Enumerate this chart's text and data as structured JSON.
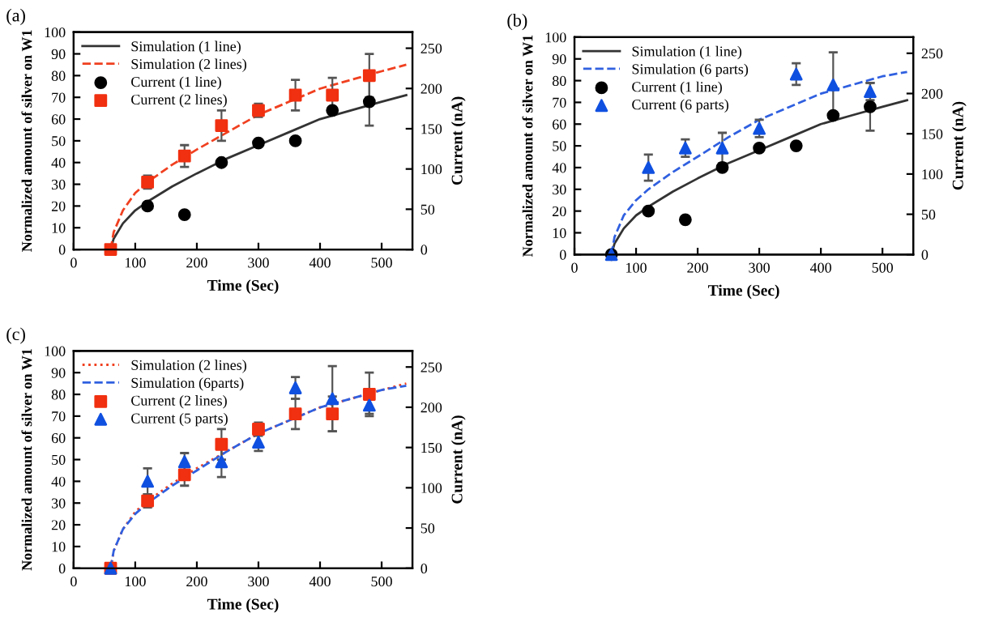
{
  "chart_data": [
    {
      "type": "line",
      "title": "(a)",
      "xlabel": "Time (Sec)",
      "ylabel": "Normalized amount of silver on W1",
      "y2label": "Current (nA)",
      "xlim": [
        0,
        550
      ],
      "xticks": [
        0,
        100,
        200,
        300,
        400,
        500
      ],
      "ylim": [
        0,
        100
      ],
      "yticks": [
        0,
        10,
        20,
        30,
        40,
        50,
        60,
        70,
        80,
        90,
        100
      ],
      "y2lim": [
        0,
        270
      ],
      "y2ticks": [
        0,
        50,
        100,
        150,
        200,
        250
      ],
      "legend": "top left",
      "series": [
        {
          "name": "Simulation (1 line)",
          "type": "line",
          "color": "#333333",
          "line_style": "solid",
          "x": [
            60,
            65,
            80,
            100,
            120,
            160,
            200,
            250,
            300,
            350,
            400,
            450,
            500,
            540
          ],
          "values": [
            0,
            5,
            12,
            18,
            22,
            29,
            35,
            42,
            48,
            54,
            60,
            64,
            68,
            71
          ]
        },
        {
          "name": "Simulation (2 lines)",
          "type": "line",
          "color": "#f04020",
          "line_style": "dashed",
          "x": [
            60,
            65,
            80,
            100,
            120,
            160,
            200,
            250,
            300,
            350,
            400,
            450,
            500,
            540
          ],
          "values": [
            0,
            8,
            18,
            26,
            31,
            39,
            46,
            54,
            62,
            68,
            74,
            78,
            82,
            85
          ]
        },
        {
          "name": "Current (1 line)",
          "type": "scatter",
          "marker": "circle",
          "color": "#000000",
          "x": [
            120,
            180,
            240,
            300,
            360,
            420,
            480
          ],
          "values": [
            20,
            16,
            40,
            49,
            50,
            64,
            68
          ],
          "errors": [
            null,
            null,
            null,
            null,
            null,
            null,
            11
          ]
        },
        {
          "name": "Current (2 lines)",
          "type": "scatter",
          "marker": "square",
          "color": "#f03010",
          "x": [
            60,
            120,
            180,
            240,
            300,
            360,
            420,
            480
          ],
          "values": [
            0,
            31,
            43,
            57,
            64,
            71,
            71,
            80
          ],
          "errors": [
            null,
            3,
            5,
            7,
            3,
            7,
            8,
            10
          ]
        }
      ]
    },
    {
      "type": "line",
      "title": "(b)",
      "xlabel": "Time (Sec)",
      "ylabel": "Normalized amount of silver on W1",
      "y2label": "Current (nA)",
      "xlim": [
        0,
        550
      ],
      "xticks": [
        0,
        100,
        200,
        300,
        400,
        500
      ],
      "ylim": [
        0,
        100
      ],
      "yticks": [
        0,
        10,
        20,
        30,
        40,
        50,
        60,
        70,
        80,
        90,
        100
      ],
      "y2lim": [
        0,
        270
      ],
      "y2ticks": [
        0,
        50,
        100,
        150,
        200,
        250
      ],
      "legend": "top left",
      "series": [
        {
          "name": "Simulation (1 line)",
          "type": "line",
          "color": "#333333",
          "line_style": "solid",
          "x": [
            60,
            65,
            80,
            100,
            120,
            160,
            200,
            250,
            300,
            350,
            400,
            450,
            500,
            540
          ],
          "values": [
            0,
            5,
            12,
            18,
            22,
            29,
            35,
            42,
            48,
            54,
            60,
            64,
            68,
            71
          ]
        },
        {
          "name": "Simulation (6 parts)",
          "type": "line",
          "color": "#3060e0",
          "line_style": "dashed",
          "x": [
            60,
            65,
            80,
            100,
            120,
            160,
            200,
            250,
            300,
            350,
            400,
            450,
            500,
            540
          ],
          "values": [
            0,
            8,
            18,
            25,
            30,
            38,
            45,
            54,
            62,
            68,
            74,
            78,
            82,
            84
          ]
        },
        {
          "name": "Current (1 line)",
          "type": "scatter",
          "marker": "circle",
          "color": "#000000",
          "x": [
            60,
            120,
            180,
            240,
            300,
            360,
            420,
            480
          ],
          "values": [
            0,
            20,
            16,
            40,
            49,
            50,
            64,
            68
          ],
          "errors": [
            null,
            null,
            null,
            null,
            null,
            null,
            null,
            11
          ]
        },
        {
          "name": "Current (6 parts)",
          "type": "scatter",
          "marker": "triangle",
          "color": "#1050e0",
          "x": [
            60,
            120,
            180,
            240,
            300,
            360,
            420,
            480
          ],
          "values": [
            0,
            40,
            49,
            49,
            58,
            83,
            78,
            75
          ],
          "errors": [
            null,
            6,
            4,
            7,
            4,
            5,
            15,
            4
          ]
        }
      ]
    },
    {
      "type": "line",
      "title": "(c)",
      "xlabel": "Time (Sec)",
      "ylabel": "Normalized amount of silver on W1",
      "y2label": "Current (nA)",
      "xlim": [
        0,
        550
      ],
      "xticks": [
        0,
        100,
        200,
        300,
        400,
        500
      ],
      "ylim": [
        0,
        100
      ],
      "yticks": [
        0,
        10,
        20,
        30,
        40,
        50,
        60,
        70,
        80,
        90,
        100
      ],
      "y2lim": [
        0,
        270
      ],
      "y2ticks": [
        0,
        50,
        100,
        150,
        200,
        250
      ],
      "legend": "top left",
      "series": [
        {
          "name": "Simulation (2 lines)",
          "type": "line",
          "color": "#f04020",
          "line_style": "dotted",
          "x": [
            60,
            65,
            80,
            100,
            120,
            160,
            200,
            250,
            300,
            350,
            400,
            450,
            500,
            540
          ],
          "values": [
            0,
            8,
            18,
            26,
            31,
            39,
            46,
            54,
            62,
            68,
            74,
            78,
            82,
            85
          ]
        },
        {
          "name": "Simulation (6parts)",
          "type": "line",
          "color": "#3060e0",
          "line_style": "dashed",
          "x": [
            60,
            65,
            80,
            100,
            120,
            160,
            200,
            250,
            300,
            350,
            400,
            450,
            500,
            540
          ],
          "values": [
            0,
            8,
            18,
            25,
            30,
            38,
            45,
            54,
            62,
            68,
            74,
            78,
            82,
            84
          ]
        },
        {
          "name": "Current (2 lines)",
          "type": "scatter",
          "marker": "square",
          "color": "#f03010",
          "x": [
            60,
            120,
            180,
            240,
            300,
            360,
            420,
            480
          ],
          "values": [
            0,
            31,
            43,
            57,
            64,
            71,
            71,
            80
          ],
          "errors": [
            null,
            3,
            5,
            7,
            3,
            7,
            8,
            10
          ]
        },
        {
          "name": "Current (5 parts)",
          "type": "scatter",
          "marker": "triangle",
          "color": "#1050e0",
          "x": [
            60,
            120,
            180,
            240,
            300,
            360,
            420,
            480
          ],
          "values": [
            0,
            40,
            49,
            49,
            58,
            83,
            78,
            75
          ],
          "errors": [
            null,
            6,
            4,
            7,
            4,
            5,
            15,
            4
          ]
        }
      ]
    }
  ]
}
